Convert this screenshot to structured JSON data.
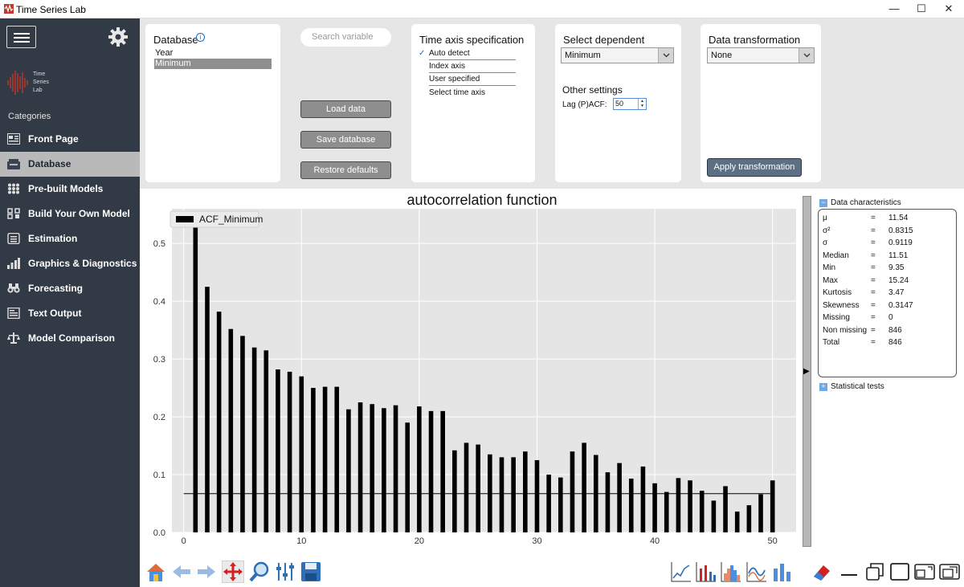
{
  "window": {
    "title": "Time Series Lab",
    "controls": {
      "minimize": "—",
      "maximize": "☐",
      "close": "✕"
    }
  },
  "sidebar": {
    "logo_text": [
      "Time",
      "Series",
      "Lab"
    ],
    "categories_label": "Categories",
    "items": [
      {
        "label": "Front Page",
        "icon": "front-page-icon",
        "active": false
      },
      {
        "label": "Database",
        "icon": "database-icon",
        "active": true
      },
      {
        "label": "Pre-built Models",
        "icon": "grid-icon",
        "active": false
      },
      {
        "label": "Build Your Own Model",
        "icon": "build-model-icon",
        "active": false
      },
      {
        "label": "Estimation",
        "icon": "estimation-icon",
        "active": false
      },
      {
        "label": "Graphics & Diagnostics",
        "icon": "bar-chart-icon",
        "active": false
      },
      {
        "label": "Forecasting",
        "icon": "binoculars-icon",
        "active": false
      },
      {
        "label": "Text Output",
        "icon": "text-output-icon",
        "active": false
      },
      {
        "label": "Model Comparison",
        "icon": "comparison-icon",
        "active": false
      }
    ]
  },
  "database": {
    "title": "Database",
    "items": [
      "Year",
      "Minimum"
    ],
    "selected": "Minimum"
  },
  "search": {
    "placeholder": "Search variable"
  },
  "buttons": {
    "load": "Load data",
    "save": "Save database",
    "restore": "Restore defaults",
    "apply": "Apply transformation"
  },
  "time_axis": {
    "title": "Time axis specification",
    "options": [
      "Auto detect",
      "Index axis",
      "User specified",
      "Select time axis"
    ],
    "checked": "Auto detect"
  },
  "dependent": {
    "title": "Select dependent variable",
    "value": "Minimum",
    "other_title": "Other settings",
    "lag_label": "Lag (P)ACF:",
    "lag_value": "50"
  },
  "transformation": {
    "title": "Data transformation",
    "value": "None"
  },
  "chart_data": {
    "type": "bar",
    "title": "autocorrelation function",
    "legend": "ACF_Minimum",
    "legend_position": "top-left",
    "grid": true,
    "xlim": [
      -1,
      52
    ],
    "ylim": [
      0,
      0.56
    ],
    "xticks": [
      0,
      10,
      20,
      30,
      40,
      50
    ],
    "yticks": [
      0.0,
      0.1,
      0.2,
      0.3,
      0.4,
      0.5
    ],
    "confidence_line": 0.067,
    "x": [
      1,
      2,
      3,
      4,
      5,
      6,
      7,
      8,
      9,
      10,
      11,
      12,
      13,
      14,
      15,
      16,
      17,
      18,
      19,
      20,
      21,
      22,
      23,
      24,
      25,
      26,
      27,
      28,
      29,
      30,
      31,
      32,
      33,
      34,
      35,
      36,
      37,
      38,
      39,
      40,
      41,
      42,
      43,
      44,
      45,
      46,
      47,
      48,
      49,
      50
    ],
    "values": [
      0.55,
      0.425,
      0.382,
      0.352,
      0.34,
      0.32,
      0.315,
      0.282,
      0.278,
      0.27,
      0.25,
      0.252,
      0.252,
      0.213,
      0.225,
      0.222,
      0.215,
      0.22,
      0.19,
      0.218,
      0.21,
      0.21,
      0.142,
      0.155,
      0.152,
      0.135,
      0.13,
      0.13,
      0.14,
      0.125,
      0.1,
      0.095,
      0.14,
      0.155,
      0.134,
      0.104,
      0.12,
      0.093,
      0.114,
      0.085,
      0.07,
      0.094,
      0.09,
      0.072,
      0.055,
      0.08,
      0.036,
      0.047,
      0.066,
      0.09
    ]
  },
  "data_characteristics": {
    "title": "Data characteristics",
    "rows": [
      {
        "key": "μ",
        "value": "11.54"
      },
      {
        "key": "σ²",
        "value": "0.8315"
      },
      {
        "key": "σ",
        "value": "0.9119"
      },
      {
        "key": "Median",
        "value": "11.51"
      },
      {
        "key": "Min",
        "value": "9.35"
      },
      {
        "key": "Max",
        "value": "15.24"
      },
      {
        "key": "Kurtosis",
        "value": "3.47"
      },
      {
        "key": "Skewness",
        "value": "0.3147"
      },
      {
        "key": "Missing",
        "value": "0"
      },
      {
        "key": "Non missing",
        "value": "846"
      },
      {
        "key": "Total",
        "value": "846"
      }
    ],
    "eq": "="
  },
  "statistical_tests": {
    "title": "Statistical tests"
  },
  "expand_glyph": "▶",
  "section_glyphs": {
    "collapse": "−",
    "expand": "+"
  }
}
